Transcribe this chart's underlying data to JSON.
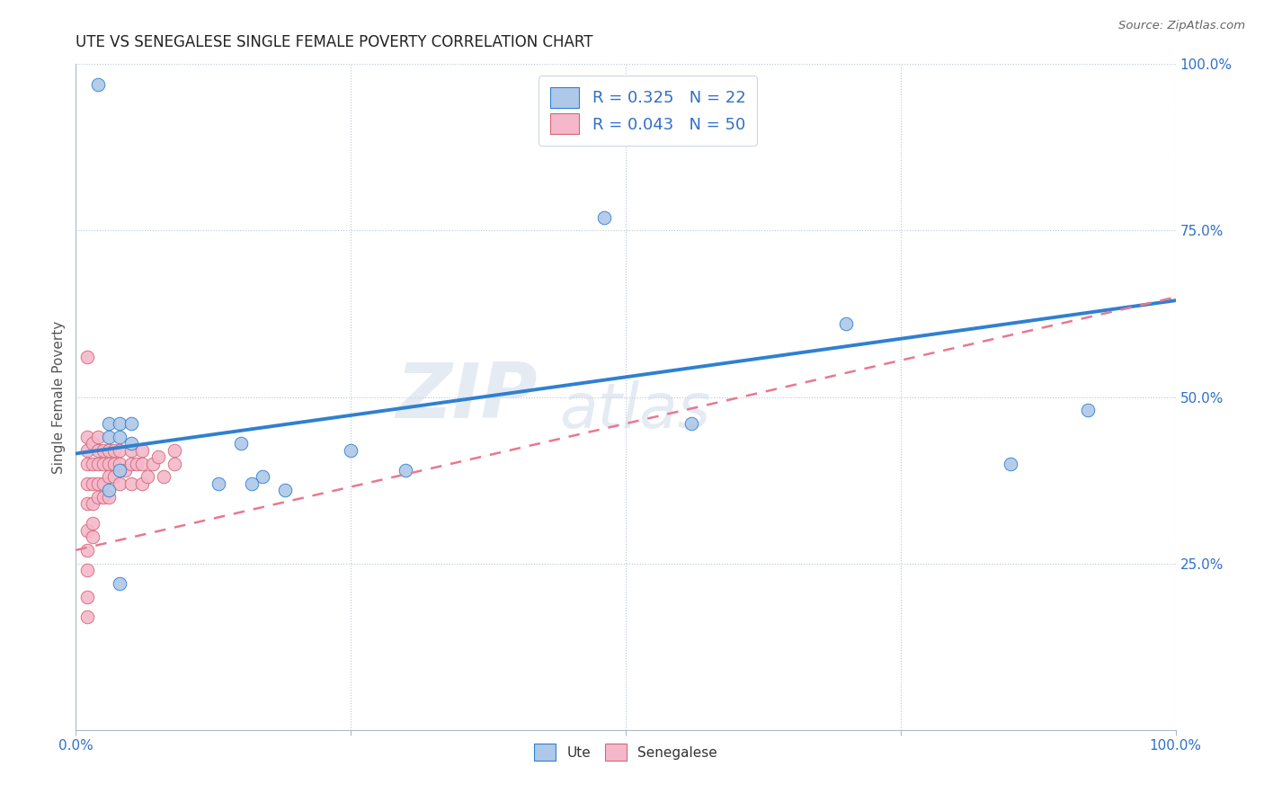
{
  "title": "UTE VS SENEGALESE SINGLE FEMALE POVERTY CORRELATION CHART",
  "source": "Source: ZipAtlas.com",
  "ylabel": "Single Female Poverty",
  "xlim": [
    0.0,
    1.0
  ],
  "ylim": [
    0.0,
    1.0
  ],
  "watermark_line1": "ZIP",
  "watermark_line2": "atlas",
  "legend_r_ute": "R = 0.325",
  "legend_n_ute": "N = 22",
  "legend_r_sen": "R = 0.043",
  "legend_n_sen": "N = 50",
  "ute_color": "#adc8e8",
  "sen_color": "#f5b8ca",
  "line_ute_color": "#3080d0",
  "line_sen_color": "#e87890",
  "background_color": "#ffffff",
  "ute_points_x": [
    0.02,
    0.03,
    0.03,
    0.04,
    0.04,
    0.04,
    0.05,
    0.05,
    0.15,
    0.17,
    0.19,
    0.25,
    0.3,
    0.48,
    0.56,
    0.7,
    0.85,
    0.92,
    0.03,
    0.04,
    0.13,
    0.16
  ],
  "ute_points_y": [
    0.97,
    0.46,
    0.44,
    0.46,
    0.44,
    0.39,
    0.46,
    0.43,
    0.43,
    0.38,
    0.36,
    0.42,
    0.39,
    0.77,
    0.46,
    0.61,
    0.4,
    0.48,
    0.36,
    0.22,
    0.37,
    0.37
  ],
  "sen_points_x": [
    0.01,
    0.01,
    0.01,
    0.01,
    0.01,
    0.01,
    0.01,
    0.01,
    0.01,
    0.01,
    0.015,
    0.015,
    0.015,
    0.015,
    0.015,
    0.015,
    0.02,
    0.02,
    0.02,
    0.02,
    0.02,
    0.025,
    0.025,
    0.025,
    0.025,
    0.03,
    0.03,
    0.03,
    0.03,
    0.035,
    0.035,
    0.035,
    0.04,
    0.04,
    0.04,
    0.045,
    0.05,
    0.05,
    0.05,
    0.055,
    0.06,
    0.06,
    0.06,
    0.065,
    0.07,
    0.075,
    0.08,
    0.09,
    0.09,
    0.01
  ],
  "sen_points_y": [
    0.56,
    0.44,
    0.42,
    0.4,
    0.37,
    0.34,
    0.3,
    0.27,
    0.24,
    0.2,
    0.43,
    0.4,
    0.37,
    0.34,
    0.31,
    0.29,
    0.44,
    0.42,
    0.4,
    0.37,
    0.35,
    0.42,
    0.4,
    0.37,
    0.35,
    0.42,
    0.4,
    0.38,
    0.35,
    0.42,
    0.4,
    0.38,
    0.42,
    0.4,
    0.37,
    0.39,
    0.42,
    0.4,
    0.37,
    0.4,
    0.42,
    0.4,
    0.37,
    0.38,
    0.4,
    0.41,
    0.38,
    0.42,
    0.4,
    0.17
  ],
  "title_fontsize": 12,
  "label_fontsize": 11,
  "tick_fontsize": 11,
  "legend_fontsize": 13,
  "ute_line_start_x": 0.0,
  "ute_line_start_y": 0.415,
  "ute_line_end_x": 1.0,
  "ute_line_end_y": 0.645,
  "sen_line_start_x": 0.0,
  "sen_line_start_y": 0.27,
  "sen_line_end_x": 1.0,
  "sen_line_end_y": 0.65
}
